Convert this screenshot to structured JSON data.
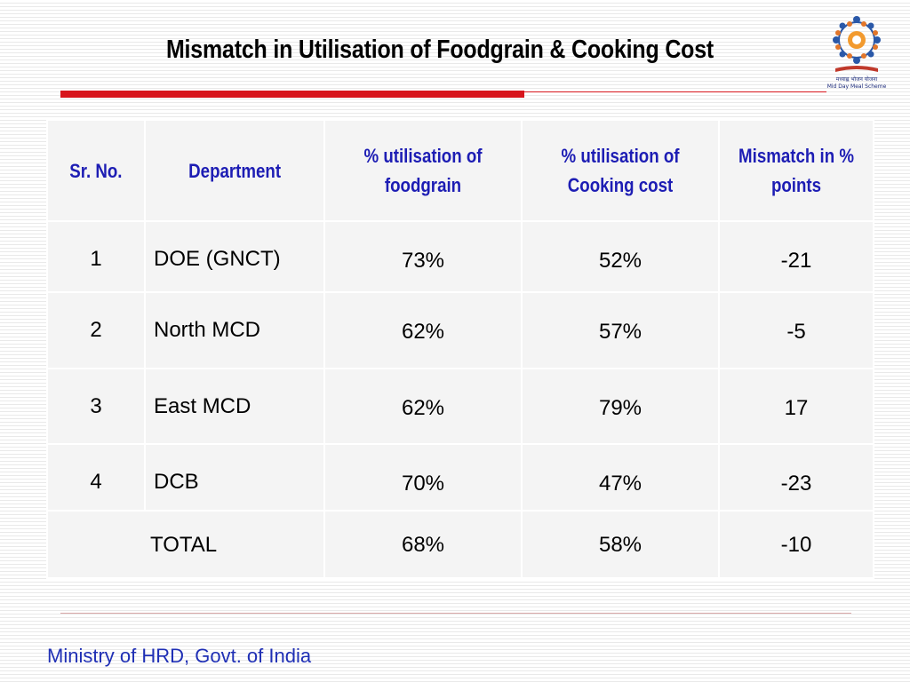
{
  "slide": {
    "title": "Mismatch in Utilisation of Foodgrain & Cooking Cost",
    "footer": "Ministry of HRD, Govt. of India",
    "logo_icon": "mid-day-meal-scheme-logo",
    "logo_hindi": "मध्याह्न भोजन योजना",
    "logo_caption": "Mid Day Meal Scheme"
  },
  "colors": {
    "accent_red": "#d7141b",
    "header_blue": "#1d1db4",
    "footer_blue": "#1f2fb5"
  },
  "table": {
    "headers": [
      "Sr. No.",
      "Department",
      "% utilisation of foodgrain",
      "% utilisation of Cooking cost",
      "Mismatch in % points"
    ],
    "rows": [
      {
        "sr": "1",
        "department": "DOE (GNCT)",
        "foodgrain": "73%",
        "cooking": "52%",
        "mismatch": "-21"
      },
      {
        "sr": "2",
        "department": "North MCD",
        "foodgrain": "62%",
        "cooking": "57%",
        "mismatch": "-5"
      },
      {
        "sr": "3",
        "department": "East MCD",
        "foodgrain": "62%",
        "cooking": "79%",
        "mismatch": "17"
      },
      {
        "sr": "4",
        "department": "DCB",
        "foodgrain": "70%",
        "cooking": "47%",
        "mismatch": "-23"
      }
    ],
    "total": {
      "label": "TOTAL",
      "foodgrain": "68%",
      "cooking": "58%",
      "mismatch": "-10"
    }
  }
}
